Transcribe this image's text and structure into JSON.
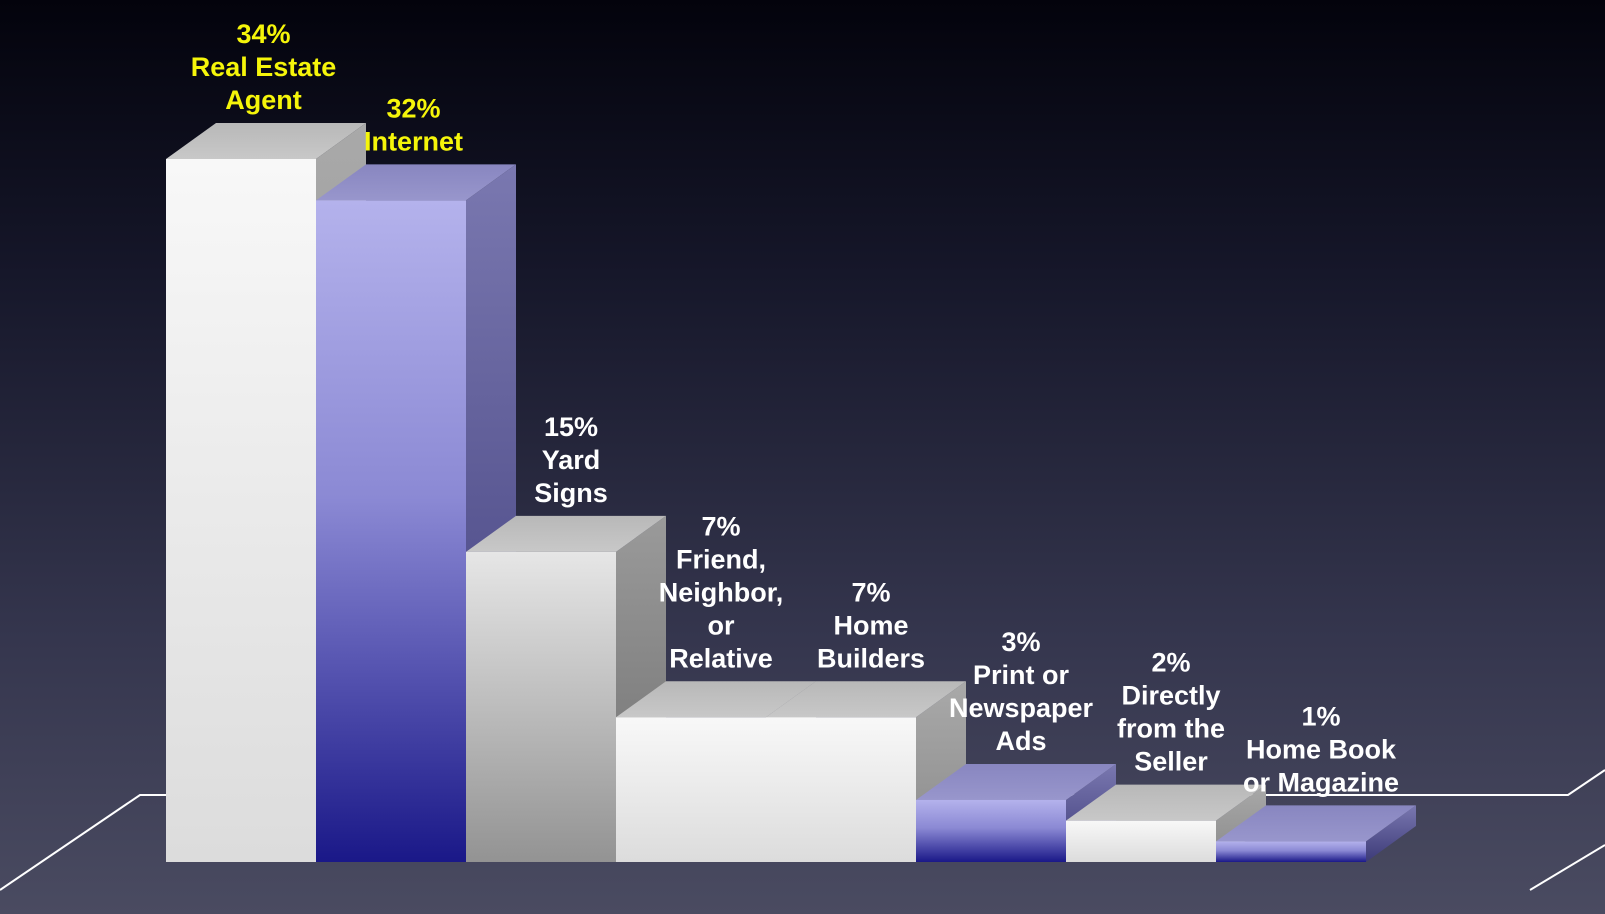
{
  "chart_data": {
    "type": "bar",
    "categories": [
      [
        "Real Estate",
        "Agent"
      ],
      [
        "Internet"
      ],
      [
        "Yard",
        "Signs"
      ],
      [
        "Friend,",
        "Neighbor,",
        "or",
        "Relative"
      ],
      [
        "Home",
        "Builders"
      ],
      [
        "Print or",
        "Newspaper",
        "Ads"
      ],
      [
        "Directly",
        "from the",
        "Seller"
      ],
      [
        "Home Book",
        "or Magazine"
      ]
    ],
    "value_labels": [
      "34%",
      "32%",
      "15%",
      "7%",
      "7%",
      "3%",
      "2%",
      "1%"
    ],
    "values": [
      34,
      32,
      15,
      7,
      7,
      3,
      2,
      1
    ],
    "highlighted": [
      true,
      true,
      false,
      false,
      false,
      false,
      false,
      false
    ],
    "bar_styles": [
      "white",
      "blue",
      "gray",
      "white",
      "white",
      "blue",
      "white",
      "blue"
    ],
    "ylim": [
      0,
      34
    ],
    "grid": false,
    "legend": "none",
    "colors": {
      "highlight_text": "#f5f50a",
      "text": "#ffffff",
      "blue_top": "#b4b2ec",
      "blue_bottom": "#1a1888",
      "white_front": "#f2f2f2",
      "gray_front": "#9a9a9a",
      "floor_line": "#ffffff"
    }
  }
}
